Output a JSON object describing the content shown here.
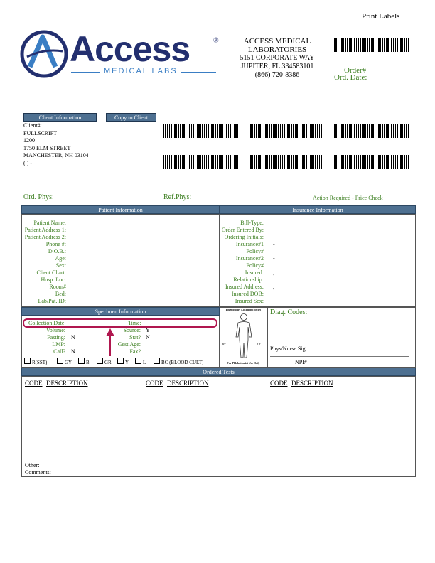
{
  "print_labels": "Print Labels",
  "logo": {
    "brand": "Access",
    "tagline": "MEDICAL LABS",
    "registered": "®"
  },
  "lab": {
    "name_line1": "ACCESS MEDICAL",
    "name_line2": "LABORATORIES",
    "address1": "5151 CORPORATE WAY",
    "address2": "JUPITER, FL 334583101",
    "phone": "(866) 720-8386"
  },
  "order": {
    "order_label": "Order#",
    "date_label": "Ord. Date:"
  },
  "buttons": {
    "client_info": "Client Information",
    "copy_to_client": "Copy to Client"
  },
  "client": {
    "label": "Client#:",
    "name": "FULLSCRIPT",
    "id": "1200",
    "street": "1750 ELM STREET",
    "city": "MANCHESTER, NH 03104",
    "phone": "(   )   -"
  },
  "physicians": {
    "ord_phys": "Ord. Phys:",
    "ref_phys": "Ref.Phys:",
    "action": "Action Required - Price Check"
  },
  "patient": {
    "header": "Patient Information",
    "labels": [
      "Patient Name:",
      "Patient Address 1:",
      "Patient Address 2:",
      "Phone #:",
      "D.O.B.:",
      "Age:",
      "Sex:",
      "Client Chart:",
      "Hosp. Loc:",
      "Room#",
      "Bed:",
      "Lab/Pat. ID:"
    ]
  },
  "insurance": {
    "header": "Insurance Information",
    "labels": [
      "Bill-Type:",
      "Order Entered By:",
      "Ordering Initials:",
      "Insurance#1",
      "Policy#",
      "Insurance#2",
      "Policy#",
      "Insured:",
      "Relationship:",
      "Insured Address:",
      "Insured DOB:",
      "Insured Sex:"
    ],
    "values": [
      "",
      "",
      "",
      "-",
      "",
      "-",
      "",
      ",",
      "",
      ",",
      "",
      ""
    ]
  },
  "specimen": {
    "header": "Specimen Information",
    "collection_date": "Collection Date:",
    "time": "Time:",
    "volume": "Volume:",
    "source": "Source:",
    "source_val": "Y",
    "fasting": "Fasting:",
    "fasting_val": "N",
    "stat": "Stat?",
    "stat_val": "N",
    "lmp": "LMP:",
    "gest_age": "Gest.Age:",
    "call": "Call?",
    "call_val": "N",
    "fax": "Fax?",
    "tubes": [
      "R(SST)",
      "GY",
      "B",
      "GR",
      "Y",
      "L",
      "BC (BLOOD CULT)"
    ]
  },
  "phlebotomy": {
    "title": "Phlebotomy Location (circle)",
    "rt": "RT",
    "lt": "LT",
    "footer": "For Phlebotomist Use Only"
  },
  "diag": {
    "codes": "Diag. Codes:",
    "phys_sig": "Phys/Nurse Sig:",
    "npi": "NPI#"
  },
  "tests": {
    "header": "Ordered Tests",
    "code": "CODE",
    "description": "DESCRIPTION",
    "other": "Other:",
    "comments": "Comments:"
  },
  "colors": {
    "header_blue": "#4e7091",
    "label_green": "#3a7d1e",
    "highlight": "#b0174f",
    "logo_navy": "#232f6f"
  }
}
